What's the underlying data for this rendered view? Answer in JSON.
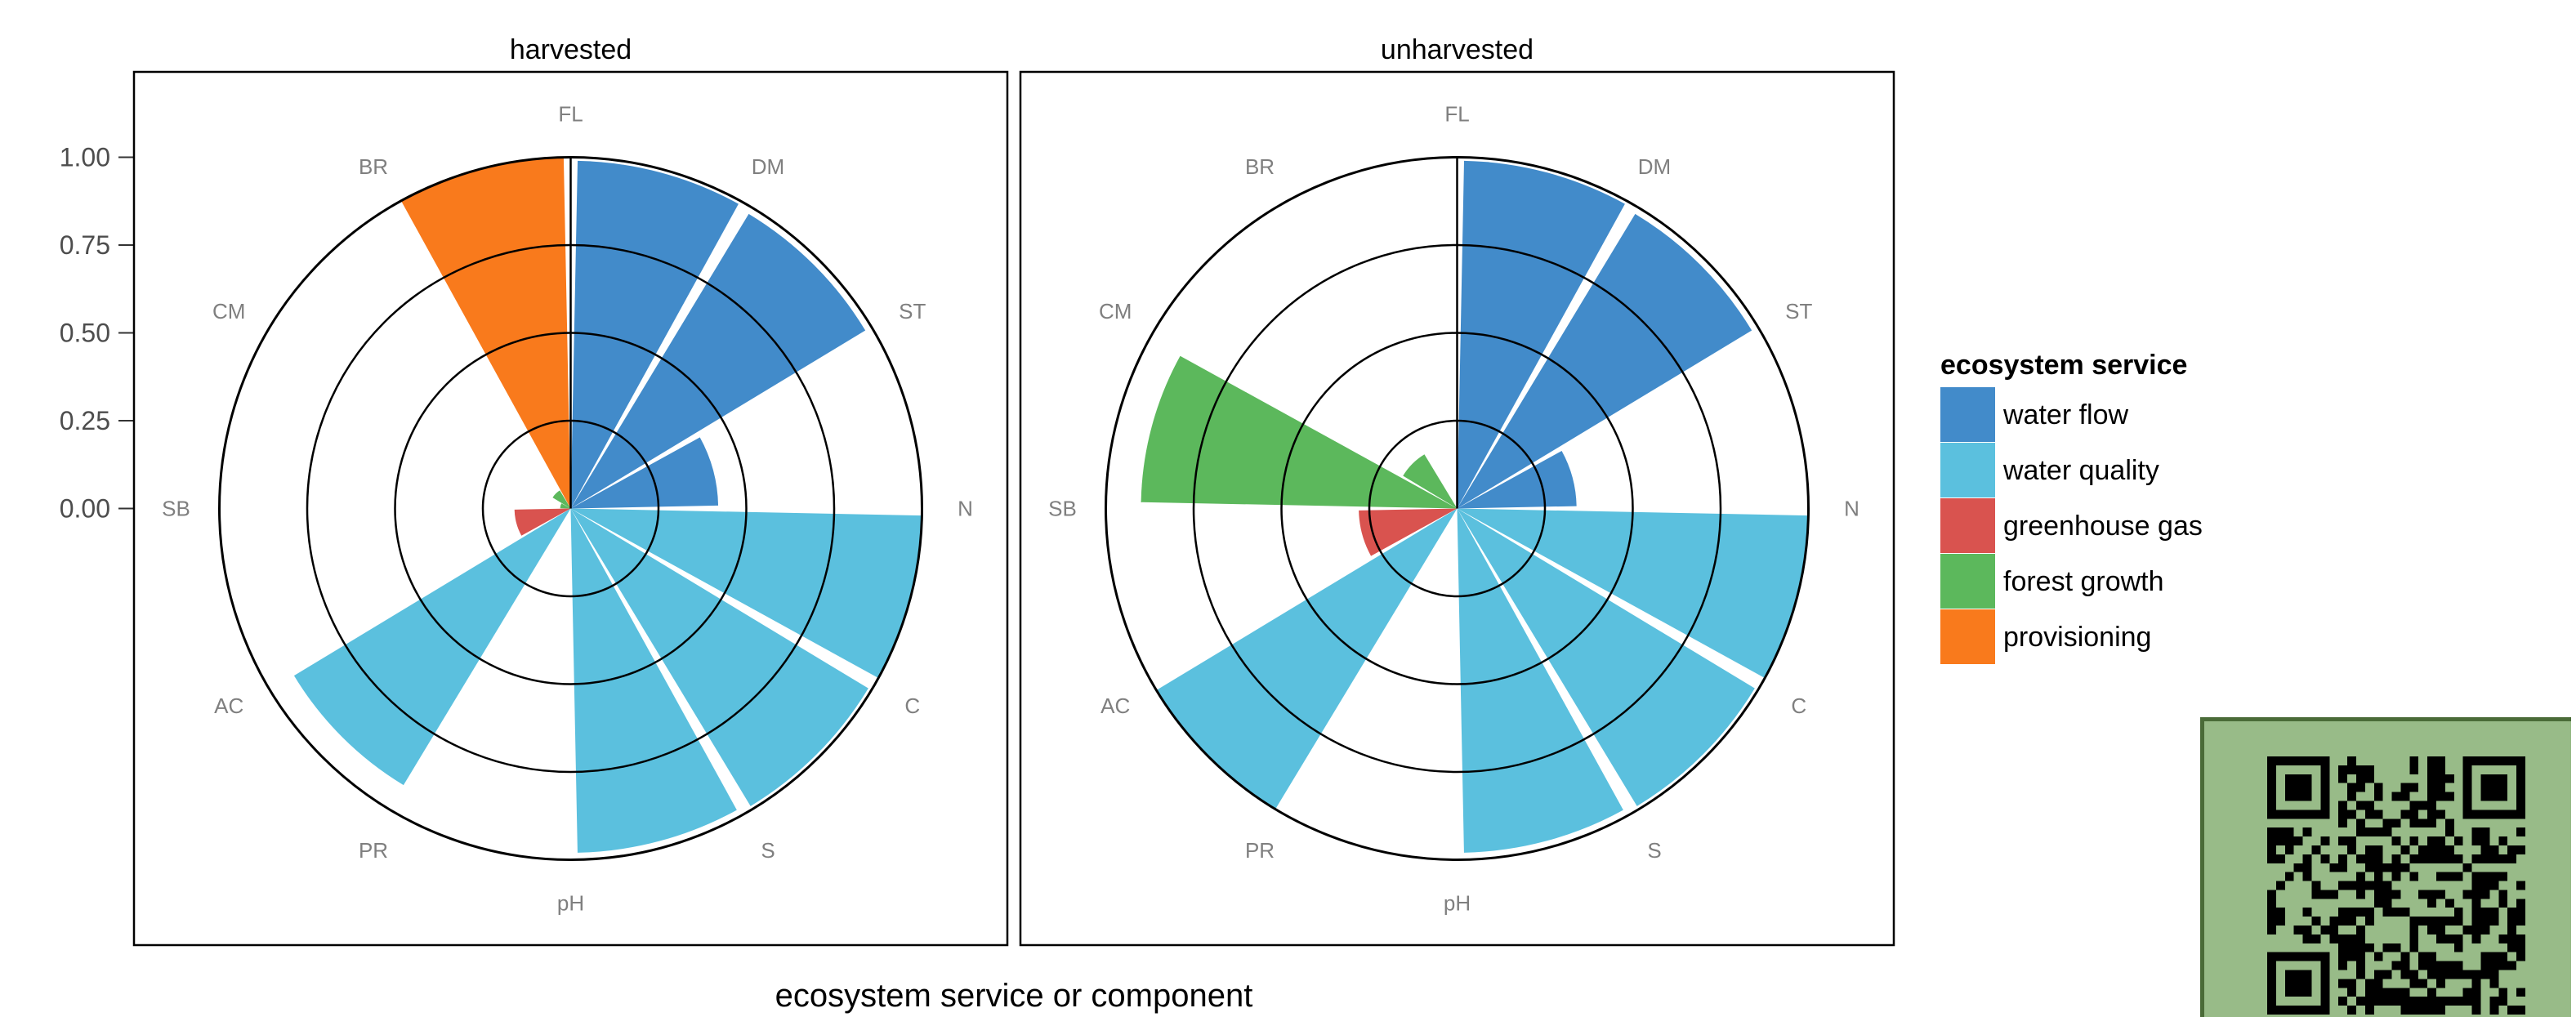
{
  "chart_data": {
    "type": "polar-bar",
    "title": "",
    "xlabel": "ecosystem service or component",
    "ylabel": "",
    "ylim": [
      0,
      1
    ],
    "yticks": [
      "0.00",
      "0.25",
      "0.50",
      "0.75",
      "1.00"
    ],
    "categories": [
      "FL",
      "DM",
      "ST",
      "N",
      "C",
      "S",
      "pH",
      "PR",
      "AC",
      "SB",
      "CM",
      "BR"
    ],
    "category_groups": [
      "water flow",
      "water flow",
      "water flow",
      "water quality",
      "water quality",
      "water quality",
      "water quality",
      "water quality",
      "greenhouse gas",
      "forest growth",
      "forest growth",
      "provisioning"
    ],
    "panels": [
      {
        "name": "harvested",
        "values": [
          0.99,
          0.98,
          0.42,
          1.0,
          0.99,
          0.98,
          0.0,
          0.92,
          0.16,
          0.03,
          0.06,
          1.0
        ]
      },
      {
        "name": "unharvested",
        "values": [
          0.99,
          0.98,
          0.34,
          1.0,
          0.99,
          0.98,
          0.0,
          1.0,
          0.28,
          0.9,
          0.18,
          0.0
        ]
      }
    ],
    "legend": {
      "title": "ecosystem service",
      "position": "right",
      "entries": [
        {
          "name": "water flow",
          "color": "#428bca"
        },
        {
          "name": "water quality",
          "color": "#5bc0de"
        },
        {
          "name": "greenhouse gas",
          "color": "#d9534f"
        },
        {
          "name": "forest growth",
          "color": "#5cb85c"
        },
        {
          "name": "provisioning",
          "color": "#f97a1c"
        }
      ]
    },
    "grid": true
  },
  "qr": {
    "icon": "qr-code-icon"
  }
}
